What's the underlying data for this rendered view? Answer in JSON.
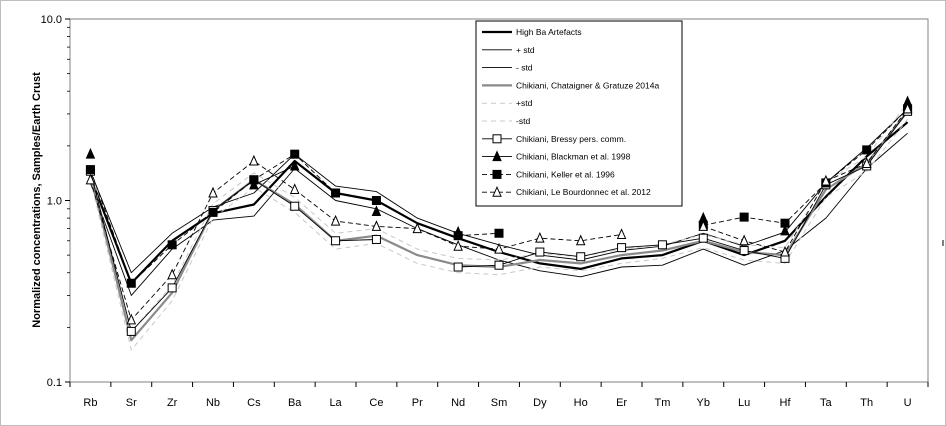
{
  "chart_data": {
    "type": "line",
    "title": "",
    "xlabel": "",
    "ylabel": "Normalized concentrations, Samples/Earth Crust",
    "yscale": "log",
    "ylim": [
      0.1,
      10.0
    ],
    "yticks": [
      "0.1",
      "1.0",
      "10.0"
    ],
    "grid": false,
    "legend_position": "top-right-inside",
    "categories": [
      "Rb",
      "Sr",
      "Zr",
      "Nb",
      "Cs",
      "Ba",
      "La",
      "Ce",
      "Pr",
      "Nd",
      "Sm",
      "Dy",
      "Ho",
      "Er",
      "Tm",
      "Yb",
      "Lu",
      "Hf",
      "Ta",
      "Th",
      "U"
    ],
    "series": [
      {
        "name": "High Ba Artefacts",
        "color": "#000000",
        "width": 2.2,
        "dash": "",
        "marker": "none",
        "values": [
          1.35,
          0.35,
          0.6,
          0.85,
          0.95,
          1.65,
          1.1,
          1.0,
          0.75,
          0.62,
          0.52,
          0.45,
          0.42,
          0.48,
          0.5,
          0.6,
          0.5,
          0.6,
          1.05,
          1.75,
          2.7
        ]
      },
      {
        "name": "+ std",
        "color": "#000000",
        "width": 0.9,
        "dash": "",
        "marker": "none",
        "values": [
          1.45,
          0.4,
          0.66,
          0.92,
          1.1,
          1.8,
          1.2,
          1.12,
          0.8,
          0.66,
          0.57,
          0.5,
          0.47,
          0.53,
          0.56,
          0.66,
          0.56,
          0.67,
          1.25,
          1.95,
          3.2
        ]
      },
      {
        "name": "- std",
        "color": "#000000",
        "width": 0.9,
        "dash": "",
        "marker": "none",
        "values": [
          1.25,
          0.3,
          0.54,
          0.78,
          0.82,
          1.5,
          1.0,
          0.9,
          0.7,
          0.57,
          0.47,
          0.41,
          0.38,
          0.43,
          0.44,
          0.54,
          0.44,
          0.53,
          0.8,
          1.5,
          2.35
        ]
      },
      {
        "name": "Chikiani, Chataigner & Gratuze 2014a",
        "color": "#8a8a8a",
        "width": 2.2,
        "dash": "",
        "marker": "none",
        "values": [
          1.4,
          0.17,
          0.31,
          0.88,
          1.3,
          0.95,
          0.6,
          0.64,
          0.5,
          0.44,
          0.43,
          0.47,
          0.45,
          0.5,
          0.53,
          0.6,
          0.52,
          0.5,
          1.15,
          1.6,
          3.1
        ]
      },
      {
        "name": "+std",
        "color": "#c8c8c8",
        "width": 1.0,
        "dash": "5,4",
        "marker": "none",
        "values": [
          1.5,
          0.19,
          0.34,
          0.96,
          1.42,
          1.04,
          0.66,
          0.7,
          0.54,
          0.48,
          0.47,
          0.51,
          0.49,
          0.54,
          0.57,
          0.65,
          0.57,
          0.55,
          1.26,
          1.75,
          3.45
        ]
      },
      {
        "name": "-std",
        "color": "#c8c8c8",
        "width": 1.0,
        "dash": "5,4",
        "marker": "none",
        "values": [
          1.3,
          0.15,
          0.28,
          0.8,
          1.18,
          0.86,
          0.54,
          0.58,
          0.45,
          0.4,
          0.39,
          0.43,
          0.41,
          0.45,
          0.48,
          0.55,
          0.47,
          0.45,
          1.04,
          1.45,
          2.8
        ]
      },
      {
        "name": "Chikiani, Bressy pers. comm.",
        "color": "#000000",
        "width": 0.9,
        "dash": "",
        "marker": "open-square",
        "values": [
          1.45,
          0.19,
          0.33,
          0.88,
          1.3,
          0.93,
          0.6,
          0.61,
          null,
          0.43,
          0.44,
          0.52,
          0.49,
          0.55,
          0.57,
          0.62,
          0.53,
          0.48,
          1.22,
          1.55,
          3.1
        ]
      },
      {
        "name": "Chikiani, Blackman et al. 1998",
        "color": "#000000",
        "width": 0.9,
        "dash": "",
        "marker": "filled-triangle",
        "values": [
          1.8,
          null,
          null,
          null,
          1.22,
          1.55,
          null,
          0.87,
          null,
          0.67,
          null,
          null,
          null,
          null,
          null,
          0.8,
          null,
          0.68,
          null,
          null,
          3.5
        ]
      },
      {
        "name": "Chikiani, Keller et al. 1996",
        "color": "#000000",
        "width": 0.9,
        "dash": "5,3",
        "marker": "filled-square",
        "values": [
          1.48,
          0.35,
          0.57,
          0.86,
          1.3,
          1.8,
          1.1,
          1.0,
          null,
          0.64,
          0.66,
          null,
          null,
          null,
          null,
          0.73,
          0.81,
          0.75,
          1.25,
          1.9,
          3.2
        ]
      },
      {
        "name": "Chikiani, Le Bourdonnec et al. 2012",
        "color": "#000000",
        "width": 0.9,
        "dash": "5,3",
        "marker": "open-triangle",
        "values": [
          1.3,
          0.22,
          0.39,
          1.1,
          1.65,
          1.15,
          0.77,
          0.72,
          0.7,
          0.56,
          0.54,
          0.62,
          0.6,
          0.65,
          null,
          0.72,
          0.6,
          0.52,
          1.28,
          1.6,
          3.2
        ]
      }
    ]
  }
}
